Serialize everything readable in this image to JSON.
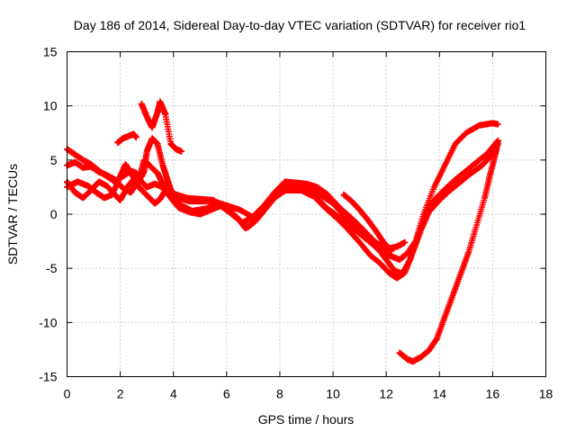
{
  "chart_data": {
    "type": "scatter",
    "title": "Day 186 of 2014, Sidereal Day-to-day VTEC variation (SDTVAR) for receiver rio1",
    "xlabel": "GPS time / hours",
    "ylabel": "SDTVAR / TECUs",
    "xlim": [
      0,
      18
    ],
    "ylim": [
      -15,
      15
    ],
    "xticks": [
      0,
      2,
      4,
      6,
      8,
      10,
      12,
      14,
      16,
      18
    ],
    "yticks": [
      -15,
      -10,
      -5,
      0,
      5,
      10,
      15
    ],
    "xtick_labels": [
      "0",
      "2",
      "4",
      "6",
      "8",
      "10",
      "12",
      "14",
      "16",
      "18"
    ],
    "ytick_labels": [
      "-15",
      "-10",
      "-5",
      "0",
      "5",
      "10",
      "15"
    ],
    "grid": true,
    "marker": "+",
    "color": "#ff0000",
    "series": [
      {
        "name": "track-a",
        "points": [
          [
            0.0,
            6.0
          ],
          [
            0.3,
            5.5
          ],
          [
            0.6,
            5.0
          ],
          [
            0.9,
            4.6
          ],
          [
            1.2,
            4.0
          ],
          [
            1.5,
            3.5
          ],
          [
            1.8,
            3.0
          ],
          [
            2.1,
            3.5
          ],
          [
            2.4,
            4.0
          ],
          [
            2.6,
            3.8
          ],
          [
            2.8,
            3.0
          ],
          [
            3.0,
            2.5
          ],
          [
            3.3,
            2.8
          ],
          [
            3.5,
            2.6
          ],
          [
            3.8,
            2.0
          ],
          [
            4.1,
            1.8
          ],
          [
            4.5,
            1.5
          ],
          [
            5.0,
            1.4
          ],
          [
            5.5,
            1.3
          ],
          [
            6.0,
            0.5
          ],
          [
            6.4,
            -0.3
          ],
          [
            6.7,
            -1.3
          ],
          [
            7.0,
            -0.8
          ],
          [
            7.3,
            0.2
          ],
          [
            7.7,
            1.5
          ],
          [
            8.0,
            2.5
          ],
          [
            8.5,
            2.6
          ],
          [
            9.0,
            2.5
          ],
          [
            9.5,
            1.8
          ],
          [
            10.0,
            1.0
          ],
          [
            10.3,
            0.2
          ],
          [
            10.6,
            -0.5
          ],
          [
            11.0,
            -1.2
          ],
          [
            11.4,
            -2.2
          ],
          [
            11.8,
            -3.2
          ],
          [
            12.1,
            -3.8
          ],
          [
            12.5,
            -4.2
          ],
          [
            12.8,
            -3.6
          ],
          [
            13.1,
            -2.5
          ],
          [
            13.4,
            0.0
          ],
          [
            13.8,
            2.5
          ],
          [
            14.2,
            4.5
          ],
          [
            14.6,
            6.5
          ],
          [
            15.0,
            7.5
          ],
          [
            15.5,
            8.2
          ],
          [
            16.0,
            8.4
          ],
          [
            16.2,
            8.3
          ]
        ]
      },
      {
        "name": "track-b",
        "points": [
          [
            0.0,
            4.5
          ],
          [
            0.3,
            4.8
          ],
          [
            0.6,
            4.3
          ],
          [
            0.9,
            4.4
          ],
          [
            1.2,
            3.9
          ],
          [
            1.5,
            3.6
          ],
          [
            1.8,
            3.2
          ],
          [
            2.1,
            2.4
          ],
          [
            2.4,
            2.0
          ],
          [
            2.7,
            3.2
          ],
          [
            2.9,
            5.0
          ],
          [
            3.1,
            4.5
          ],
          [
            3.4,
            3.8
          ],
          [
            3.6,
            2.8
          ],
          [
            3.9,
            2.2
          ],
          [
            4.2,
            1.5
          ],
          [
            4.6,
            1.2
          ],
          [
            5.0,
            1.2
          ],
          [
            5.5,
            1.2
          ],
          [
            6.0,
            0.8
          ],
          [
            6.5,
            0.4
          ],
          [
            7.0,
            -0.3
          ],
          [
            7.5,
            0.8
          ],
          [
            8.0,
            2.0
          ],
          [
            8.6,
            2.5
          ],
          [
            9.2,
            2.0
          ],
          [
            9.8,
            0.5
          ],
          [
            10.3,
            -0.4
          ],
          [
            10.7,
            -1.2
          ],
          [
            11.1,
            -2.0
          ],
          [
            11.5,
            -2.8
          ],
          [
            11.8,
            -3.5
          ],
          [
            12.0,
            -4.2
          ],
          [
            12.3,
            -5.2
          ],
          [
            12.6,
            -5.5
          ],
          [
            12.9,
            -4.2
          ],
          [
            13.2,
            -2.0
          ],
          [
            13.5,
            0.0
          ],
          [
            13.8,
            1.3
          ],
          [
            14.2,
            2.3
          ],
          [
            14.6,
            3.2
          ],
          [
            15.0,
            4.0
          ],
          [
            15.4,
            4.8
          ],
          [
            15.8,
            5.6
          ],
          [
            16.2,
            6.8
          ]
        ]
      },
      {
        "name": "track-c",
        "points": [
          [
            0.0,
            2.5
          ],
          [
            0.4,
            3.0
          ],
          [
            0.8,
            2.6
          ],
          [
            1.1,
            2.0
          ],
          [
            1.4,
            1.5
          ],
          [
            1.7,
            1.8
          ],
          [
            2.0,
            3.5
          ],
          [
            2.2,
            4.6
          ],
          [
            2.4,
            3.8
          ],
          [
            2.6,
            3.0
          ],
          [
            2.8,
            3.5
          ],
          [
            2.9,
            4.0
          ],
          [
            3.0,
            5.8
          ],
          [
            3.2,
            7.0
          ],
          [
            3.4,
            6.5
          ],
          [
            3.6,
            4.5
          ],
          [
            3.8,
            3.0
          ],
          [
            4.0,
            1.5
          ],
          [
            4.3,
            0.8
          ],
          [
            4.7,
            0.3
          ],
          [
            5.2,
            0.5
          ],
          [
            5.7,
            0.9
          ],
          [
            6.1,
            0.2
          ],
          [
            6.5,
            -0.6
          ],
          [
            6.8,
            -1.2
          ],
          [
            7.1,
            -0.6
          ],
          [
            7.4,
            0.3
          ],
          [
            7.8,
            1.5
          ],
          [
            8.2,
            2.2
          ],
          [
            8.8,
            2.2
          ],
          [
            9.3,
            1.6
          ],
          [
            9.7,
            0.6
          ],
          [
            10.2,
            -0.5
          ],
          [
            10.6,
            -1.5
          ],
          [
            11.0,
            -2.6
          ],
          [
            11.4,
            -3.8
          ],
          [
            11.8,
            -4.6
          ],
          [
            12.1,
            -5.4
          ],
          [
            12.4,
            -5.9
          ],
          [
            12.7,
            -5.4
          ],
          [
            13.0,
            -3.5
          ],
          [
            13.3,
            -1.5
          ],
          [
            13.6,
            0.2
          ],
          [
            14.0,
            1.3
          ],
          [
            14.4,
            2.2
          ],
          [
            14.8,
            3.0
          ],
          [
            15.2,
            3.8
          ],
          [
            15.6,
            4.5
          ],
          [
            16.0,
            5.5
          ],
          [
            16.2,
            6.5
          ]
        ]
      },
      {
        "name": "track-d",
        "points": [
          [
            0.0,
            3.0
          ],
          [
            0.3,
            2.0
          ],
          [
            0.6,
            1.5
          ],
          [
            0.9,
            2.2
          ],
          [
            1.2,
            3.0
          ],
          [
            1.5,
            2.6
          ],
          [
            1.8,
            1.8
          ],
          [
            2.0,
            1.3
          ],
          [
            2.3,
            2.6
          ],
          [
            2.5,
            3.2
          ],
          [
            2.7,
            2.5
          ],
          [
            2.9,
            2.0
          ],
          [
            3.1,
            1.5
          ],
          [
            3.3,
            1.0
          ],
          [
            3.5,
            1.4
          ],
          [
            3.7,
            2.2
          ],
          [
            3.9,
            1.5
          ],
          [
            4.2,
            0.6
          ],
          [
            4.6,
            0.2
          ],
          [
            5.0,
            0.0
          ],
          [
            5.4,
            0.4
          ],
          [
            5.8,
            0.8
          ],
          [
            6.2,
            0.0
          ],
          [
            6.6,
            -0.8
          ],
          [
            7.0,
            -0.2
          ],
          [
            7.4,
            0.8
          ],
          [
            7.8,
            2.0
          ],
          [
            8.2,
            3.0
          ],
          [
            8.6,
            2.9
          ],
          [
            9.0,
            2.8
          ],
          [
            9.4,
            2.5
          ],
          [
            9.8,
            1.8
          ],
          [
            10.3,
            0.5
          ],
          [
            10.8,
            -0.6
          ],
          [
            11.2,
            -1.6
          ],
          [
            11.6,
            -2.6
          ],
          [
            12.0,
            -3.2
          ],
          [
            12.4,
            -3.0
          ],
          [
            12.7,
            -2.6
          ]
        ]
      },
      {
        "name": "track-e",
        "points": [
          [
            2.8,
            10.2
          ],
          [
            3.0,
            9.0
          ],
          [
            3.2,
            8.0
          ],
          [
            3.4,
            9.4
          ],
          [
            3.5,
            10.4
          ],
          [
            3.7,
            9.2
          ],
          [
            3.9,
            6.5
          ],
          [
            4.1,
            6.0
          ],
          [
            4.3,
            5.8
          ]
        ]
      },
      {
        "name": "track-f",
        "points": [
          [
            1.9,
            6.6
          ],
          [
            2.1,
            7.0
          ],
          [
            2.3,
            7.2
          ],
          [
            2.5,
            7.4
          ],
          [
            2.6,
            7.1
          ]
        ]
      },
      {
        "name": "track-g",
        "points": [
          [
            10.4,
            1.8
          ],
          [
            10.7,
            1.2
          ],
          [
            11.0,
            0.4
          ],
          [
            11.3,
            -0.5
          ],
          [
            11.6,
            -1.5
          ],
          [
            11.9,
            -2.6
          ],
          [
            12.2,
            -3.4
          ]
        ]
      },
      {
        "name": "track-h",
        "points": [
          [
            12.5,
            -12.8
          ],
          [
            12.8,
            -13.4
          ],
          [
            13.0,
            -13.6
          ],
          [
            13.3,
            -13.2
          ],
          [
            13.6,
            -12.6
          ],
          [
            13.9,
            -11.5
          ],
          [
            14.2,
            -9.5
          ],
          [
            14.5,
            -7.5
          ],
          [
            14.8,
            -5.5
          ],
          [
            15.1,
            -3.5
          ],
          [
            15.4,
            -1.0
          ],
          [
            15.7,
            1.5
          ],
          [
            15.9,
            3.6
          ],
          [
            16.1,
            5.5
          ],
          [
            16.2,
            6.8
          ]
        ]
      }
    ]
  }
}
